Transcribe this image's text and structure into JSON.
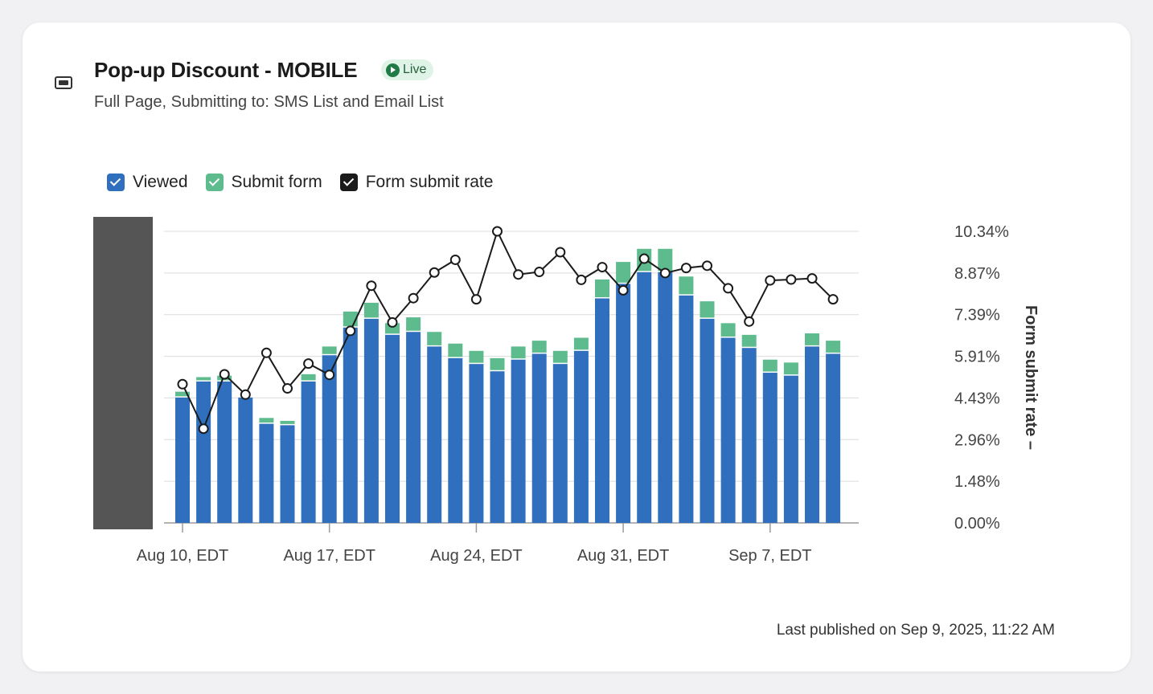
{
  "header": {
    "title": "Pop-up Discount - MOBILE",
    "status": "Live",
    "subtitle": "Full Page, Submitting to: SMS List and Email List",
    "form_icon": "form-icon"
  },
  "legend": {
    "viewed": "Viewed",
    "submit": "Submit form",
    "rate": "Form submit rate"
  },
  "footer": {
    "last_published": "Last published on Sep 9, 2025, 11:22 AM"
  },
  "colors": {
    "viewed": "#2f6fbd",
    "submit": "#5dbb8e",
    "rate": "#1b1b1b",
    "grid": "#dcdcdc",
    "tooltip_overlay": "#555555"
  },
  "chart_data": {
    "type": "bar",
    "stacked": true,
    "x": [
      "Aug 10",
      "Aug 11",
      "Aug 12",
      "Aug 13",
      "Aug 14",
      "Aug 15",
      "Aug 16",
      "Aug 17",
      "Aug 18",
      "Aug 19",
      "Aug 20",
      "Aug 21",
      "Aug 22",
      "Aug 23",
      "Aug 24",
      "Aug 25",
      "Aug 26",
      "Aug 27",
      "Aug 28",
      "Aug 29",
      "Aug 30",
      "Aug 31",
      "Sep 1",
      "Sep 2",
      "Sep 3",
      "Sep 4",
      "Sep 5",
      "Sep 6",
      "Sep 7",
      "Sep 8",
      "Sep 9",
      "Sep 10",
      "Sep 11"
    ],
    "x_tick_labels": [
      "Aug 10, EDT",
      "Aug 17, EDT",
      "Aug 24, EDT",
      "Aug 31, EDT",
      "Sep 7, EDT"
    ],
    "x_tick_indices": [
      0,
      7,
      14,
      21,
      28
    ],
    "series": [
      {
        "name": "Viewed",
        "axis": "left",
        "values": [
          430,
          485,
          485,
          430,
          340,
          335,
          485,
          575,
          670,
          700,
          645,
          655,
          605,
          565,
          545,
          520,
          560,
          580,
          545,
          590,
          770,
          820,
          860,
          860,
          780,
          700,
          635,
          600,
          515,
          505,
          605,
          580,
          null
        ]
      },
      {
        "name": "Submit form",
        "axis": "left",
        "values": [
          20,
          15,
          20,
          0,
          20,
          15,
          25,
          30,
          55,
          55,
          40,
          50,
          50,
          50,
          45,
          45,
          45,
          45,
          45,
          45,
          65,
          75,
          80,
          80,
          65,
          60,
          50,
          45,
          45,
          45,
          45,
          45,
          null
        ]
      },
      {
        "name": "Form submit rate",
        "axis": "right",
        "values": [
          4.92,
          3.34,
          5.27,
          4.55,
          6.03,
          4.77,
          5.65,
          5.25,
          6.81,
          8.41,
          7.11,
          7.97,
          8.88,
          9.33,
          7.93,
          10.34,
          8.81,
          8.9,
          9.6,
          8.62,
          9.07,
          8.25,
          9.37,
          8.86,
          9.04,
          9.12,
          8.32,
          7.14,
          8.6,
          8.63,
          8.67,
          7.93,
          null
        ]
      }
    ],
    "y_left_range": [
      0,
      1000
    ],
    "y_right_label": "Form submit rate –",
    "y_right_ticks": [
      "0.00%",
      "1.48%",
      "2.96%",
      "4.43%",
      "5.91%",
      "7.39%",
      "8.87%",
      "10.34%"
    ],
    "y_right_range": [
      0,
      10.34
    ],
    "grid": true,
    "legend_position": "top-left"
  }
}
